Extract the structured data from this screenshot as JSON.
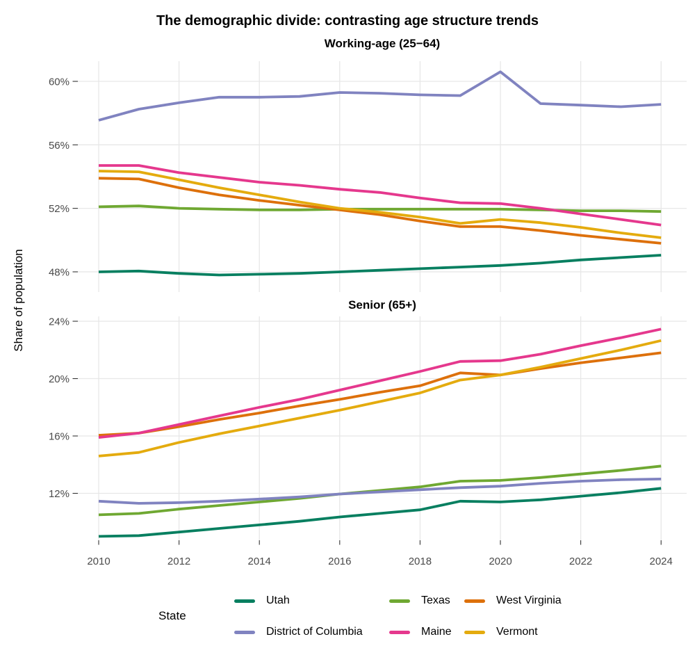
{
  "title": "The demographic divide: contrasting age structure trends",
  "y_axis_label": "Share of population",
  "x_axis": {
    "ticks": [
      2010,
      2012,
      2014,
      2016,
      2018,
      2020,
      2022,
      2024
    ],
    "labels": [
      "2010",
      "2012",
      "2014",
      "2016",
      "2018",
      "2020",
      "2022",
      "2024"
    ]
  },
  "style": {
    "background": "#ffffff",
    "grid_color": "#e7e7e7",
    "tick_mark_color": "#333333",
    "tick_label_color": "#4a4a4a",
    "title_color": "#000000"
  },
  "legend": {
    "title": "State",
    "position": "bottom",
    "items": [
      {
        "label": "Utah",
        "color": "#077f60"
      },
      {
        "label": "Texas",
        "color": "#6fa832"
      },
      {
        "label": "West Virginia",
        "color": "#dd700b"
      },
      {
        "label": "District of Columbia",
        "color": "#8083c0"
      },
      {
        "label": "Maine",
        "color": "#e5388d"
      },
      {
        "label": "Vermont",
        "color": "#e4ab0e"
      }
    ]
  },
  "chart_data": [
    {
      "type": "line",
      "title": "Working-age (25−64)",
      "x": [
        2010,
        2011,
        2012,
        2013,
        2014,
        2015,
        2016,
        2017,
        2018,
        2019,
        2020,
        2021,
        2022,
        2023,
        2024
      ],
      "y_ticks": [
        {
          "v": 60,
          "label": "60%"
        },
        {
          "v": 56,
          "label": "56%"
        },
        {
          "v": 52,
          "label": "52%"
        },
        {
          "v": 48,
          "label": "48%"
        }
      ],
      "ylim": [
        46.7,
        61.3
      ],
      "grid": true,
      "show_x_labels": false,
      "series": [
        {
          "name": "Utah",
          "color": "#077f60",
          "values": [
            48.0,
            48.05,
            47.9,
            47.8,
            47.85,
            47.9,
            48.0,
            48.1,
            48.2,
            48.3,
            48.4,
            48.55,
            48.75,
            48.9,
            49.05
          ]
        },
        {
          "name": "Texas",
          "color": "#6fa832",
          "values": [
            52.1,
            52.15,
            52.0,
            51.95,
            51.9,
            51.9,
            51.95,
            51.95,
            51.95,
            51.95,
            51.95,
            51.9,
            51.85,
            51.85,
            51.8
          ]
        },
        {
          "name": "West Virginia",
          "color": "#dd700b",
          "values": [
            53.9,
            53.85,
            53.3,
            52.85,
            52.5,
            52.2,
            51.9,
            51.6,
            51.2,
            50.85,
            50.85,
            50.6,
            50.3,
            50.05,
            49.8
          ]
        },
        {
          "name": "District of Columbia",
          "color": "#8083c0",
          "values": [
            57.55,
            58.25,
            58.65,
            59.0,
            59.0,
            59.05,
            59.3,
            59.25,
            59.15,
            59.1,
            60.6,
            58.6,
            58.5,
            58.4,
            58.55
          ]
        },
        {
          "name": "Maine",
          "color": "#e5388d",
          "values": [
            54.7,
            54.7,
            54.25,
            53.95,
            53.65,
            53.45,
            53.2,
            53.0,
            52.65,
            52.35,
            52.3,
            52.0,
            51.65,
            51.3,
            50.95
          ]
        },
        {
          "name": "Vermont",
          "color": "#e4ab0e",
          "values": [
            54.35,
            54.3,
            53.8,
            53.3,
            52.85,
            52.4,
            52.0,
            51.75,
            51.45,
            51.05,
            51.3,
            51.1,
            50.8,
            50.45,
            50.15
          ]
        }
      ]
    },
    {
      "type": "line",
      "title": "Senior (65+)",
      "x": [
        2010,
        2011,
        2012,
        2013,
        2014,
        2015,
        2016,
        2017,
        2018,
        2019,
        2020,
        2021,
        2022,
        2023,
        2024
      ],
      "y_ticks": [
        {
          "v": 24,
          "label": "24%"
        },
        {
          "v": 20,
          "label": "20%"
        },
        {
          "v": 16,
          "label": "16%"
        },
        {
          "v": 12,
          "label": "12%"
        }
      ],
      "ylim": [
        8.7,
        24.3
      ],
      "grid": true,
      "show_x_labels": true,
      "series": [
        {
          "name": "Utah",
          "color": "#077f60",
          "values": [
            9.0,
            9.05,
            9.3,
            9.55,
            9.8,
            10.05,
            10.35,
            10.6,
            10.85,
            11.45,
            11.4,
            11.55,
            11.8,
            12.05,
            12.35
          ]
        },
        {
          "name": "Texas",
          "color": "#6fa832",
          "values": [
            10.5,
            10.6,
            10.9,
            11.15,
            11.4,
            11.65,
            11.95,
            12.2,
            12.45,
            12.85,
            12.9,
            13.1,
            13.35,
            13.6,
            13.9
          ]
        },
        {
          "name": "West Virginia",
          "color": "#dd700b",
          "values": [
            16.05,
            16.2,
            16.65,
            17.15,
            17.6,
            18.1,
            18.55,
            19.05,
            19.5,
            20.4,
            20.25,
            20.7,
            21.1,
            21.45,
            21.8
          ]
        },
        {
          "name": "District of Columbia",
          "color": "#8083c0",
          "values": [
            11.45,
            11.3,
            11.35,
            11.45,
            11.6,
            11.75,
            11.95,
            12.1,
            12.25,
            12.4,
            12.5,
            12.7,
            12.85,
            12.95,
            13.0
          ]
        },
        {
          "name": "Maine",
          "color": "#e5388d",
          "values": [
            15.9,
            16.2,
            16.8,
            17.4,
            18.0,
            18.55,
            19.2,
            19.85,
            20.5,
            21.2,
            21.25,
            21.7,
            22.3,
            22.85,
            23.45
          ]
        },
        {
          "name": "Vermont",
          "color": "#e4ab0e",
          "values": [
            14.6,
            14.85,
            15.55,
            16.15,
            16.7,
            17.25,
            17.8,
            18.4,
            19.0,
            19.9,
            20.25,
            20.8,
            21.4,
            22.0,
            22.65
          ]
        }
      ]
    }
  ]
}
